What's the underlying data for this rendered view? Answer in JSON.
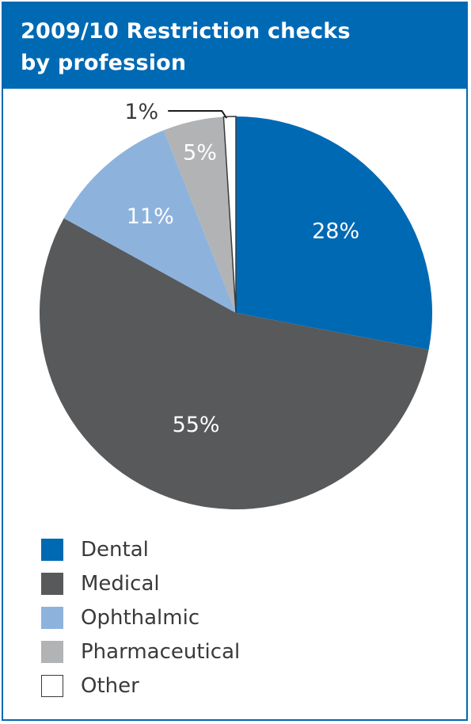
{
  "header": {
    "title_line1": "2009/10 Restriction checks",
    "title_line2": "by profession"
  },
  "chart_data": {
    "type": "pie",
    "title": "2009/10 Restriction checks by profession",
    "slices": [
      {
        "name": "Dental",
        "value": 28,
        "label": "28%",
        "color": "#0069b4",
        "label_color": "#ffffff"
      },
      {
        "name": "Medical",
        "value": 55,
        "label": "55%",
        "color": "#58595b",
        "label_color": "#ffffff"
      },
      {
        "name": "Ophthalmic",
        "value": 11,
        "label": "11%",
        "color": "#8db3dd",
        "label_color": "#ffffff"
      },
      {
        "name": "Pharmaceutical",
        "value": 5,
        "label": "5%",
        "color": "#b2b3b5",
        "label_color": "#ffffff"
      },
      {
        "name": "Other",
        "value": 1,
        "label": "1%",
        "color": "#ffffff",
        "label_color": "#3a3a3a"
      }
    ],
    "legend_position": "bottom-left"
  }
}
